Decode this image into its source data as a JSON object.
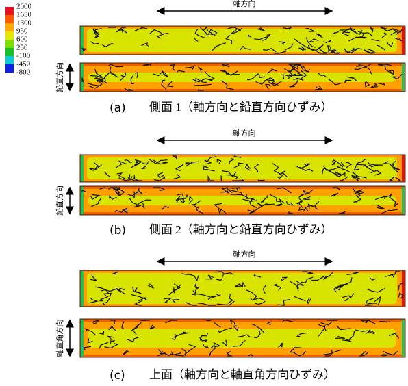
{
  "legend": {
    "labels": [
      2000,
      1650,
      1300,
      950,
      600,
      250,
      -100,
      -450,
      -800
    ]
  },
  "panels": [
    {
      "axial_label": "軸方向",
      "side_label": "鉛直方向",
      "caption_id": "(a)",
      "caption": "側面 1（軸方向と鉛直方向ひずみ）"
    },
    {
      "axial_label": "軸方向",
      "side_label": "鉛直方向",
      "caption_id": "(b)",
      "caption": "側面 2（軸方向と鉛直方向ひずみ）"
    },
    {
      "axial_label": "軸方向",
      "side_label": "軸直角方向",
      "caption_id": "(c)",
      "caption": "上面（軸方向と軸直角方向ひずみ）"
    }
  ]
}
